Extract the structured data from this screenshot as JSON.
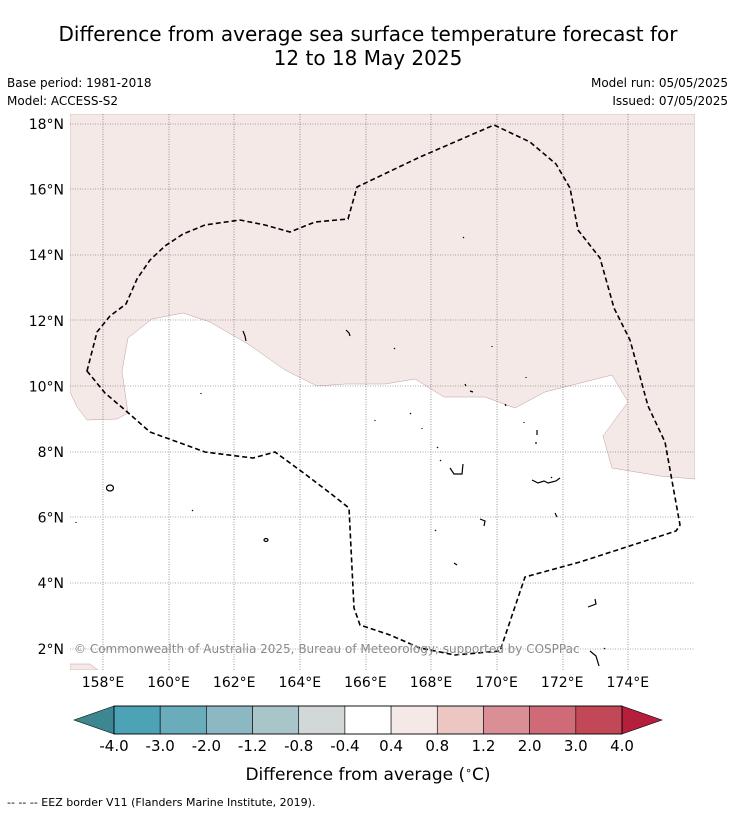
{
  "title_line1": "Difference from average sea surface temperature forecast for",
  "title_line2": "12 to 18 May 2025",
  "base_period": "Base period: 1981-2018",
  "model": "Model: ACCESS-S2",
  "model_run": "Model run: 05/05/2025",
  "issued": "Issued: 07/05/2025",
  "credit": "© Commonwealth of Australia 2025, Bureau of Meteorology; supported by COSPPac",
  "eez_legend": "--  --  -- EEZ border V11 (Flanders Marine Institute, 2019).",
  "map": {
    "lat_ticks": [
      "18°N",
      "16°N",
      "14°N",
      "12°N",
      "10°N",
      "8°N",
      "6°N",
      "4°N",
      "2°N"
    ],
    "lon_ticks": [
      "158°E",
      "160°E",
      "162°E",
      "164°E",
      "166°E",
      "168°E",
      "170°E",
      "172°E",
      "174°E"
    ],
    "lat_values": [
      18,
      16,
      14,
      12,
      10,
      8,
      6,
      4,
      2
    ],
    "lon_values": [
      158,
      160,
      162,
      164,
      166,
      168,
      170,
      172,
      174
    ],
    "lon_range": [
      157,
      176
    ],
    "lat_range": [
      1.5,
      18.3
    ]
  },
  "colorbar": {
    "label": "Difference from average ($^\\circ$C)",
    "label_text": "Difference from average (",
    "label_unit": "C)",
    "tick_labels": [
      "-4.0",
      "-3.0",
      "-2.0",
      "-1.2",
      "-0.8",
      "-0.4",
      "0.4",
      "0.8",
      "1.2",
      "2.0",
      "3.0",
      "4.0"
    ],
    "colors": [
      "#3d8790",
      "#4ba3b5",
      "#6aacbc",
      "#8cb8c4",
      "#a9c5ca",
      "#d2d8d8",
      "#ffffff",
      "#f5e9e7",
      "#ebc6c3",
      "#da8f97",
      "#cf6a76",
      "#c24757",
      "#b51f3b"
    ]
  },
  "chart_data": {
    "type": "heatmap",
    "title": "Difference from average sea surface temperature forecast for 12 to 18 May 2025",
    "xlabel": "",
    "ylabel": "",
    "x_range": [
      157,
      176
    ],
    "y_range": [
      1.5,
      18.3
    ],
    "colorbar_label": "Difference from average (°C)",
    "levels": [
      -4.0,
      -3.0,
      -2.0,
      -1.2,
      -0.8,
      -0.4,
      0.4,
      0.8,
      1.2,
      2.0,
      3.0,
      4.0
    ],
    "regions": [
      {
        "category": "0.4 to 0.8",
        "area": "northern and eastern parts of the domain"
      },
      {
        "category": "-0.4 to 0.4",
        "area": "central and southern parts of the domain"
      }
    ]
  }
}
